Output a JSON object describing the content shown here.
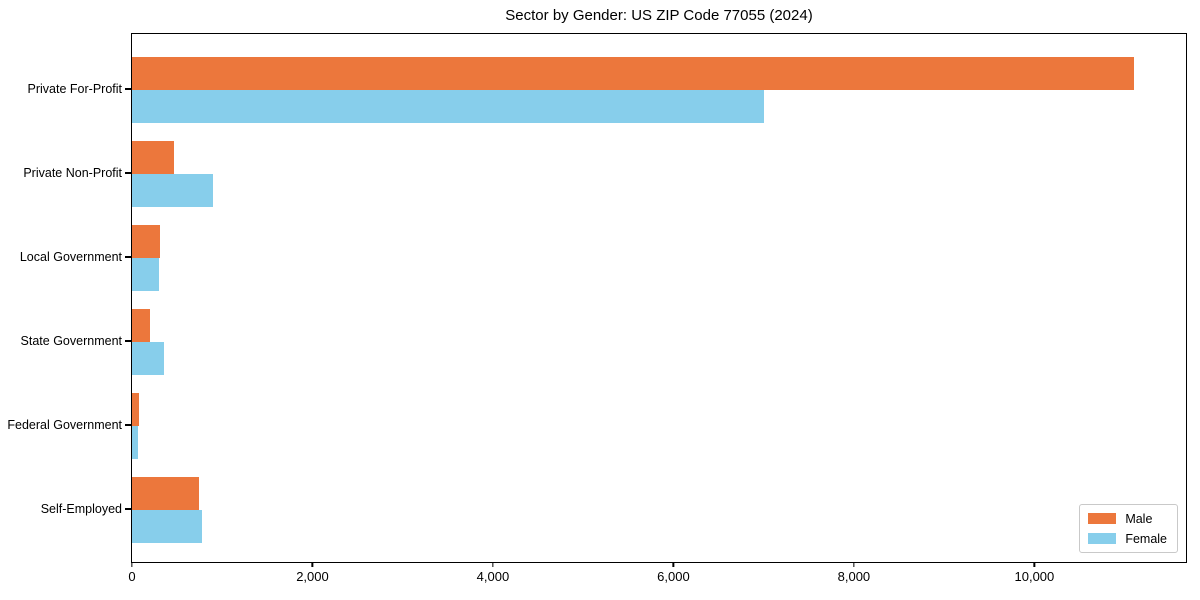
{
  "chart_data": {
    "type": "bar",
    "orientation": "horizontal",
    "title": "Sector by Gender: US ZIP Code 77055 (2024)",
    "categories": [
      "Private For-Profit",
      "Private Non-Profit",
      "Local Government",
      "State Government",
      "Federal Government",
      "Self-Employed"
    ],
    "series": [
      {
        "name": "Male",
        "color": "#ec773c",
        "values": [
          11100,
          465,
          310,
          200,
          80,
          740
        ]
      },
      {
        "name": "Female",
        "color": "#87ceeb",
        "values": [
          7000,
          900,
          300,
          355,
          70,
          775
        ]
      }
    ],
    "xlim": [
      0,
      11680
    ],
    "x_ticks": [
      0,
      2000,
      4000,
      6000,
      8000,
      10000
    ],
    "x_tick_labels": [
      "0",
      "2,000",
      "4,000",
      "6,000",
      "8,000",
      "10,000"
    ],
    "xlabel": "",
    "ylabel": "",
    "grid": false,
    "legend_position": "lower right"
  },
  "colors": {
    "male": "#ec773c",
    "female": "#87ceeb",
    "spine": "#000000",
    "legend_border": "#c9c9c9",
    "background": "#ffffff"
  }
}
